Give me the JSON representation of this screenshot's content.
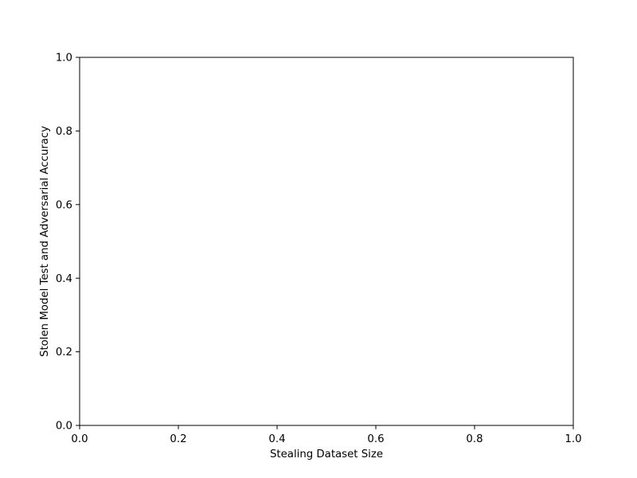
{
  "chart_data": {
    "type": "line",
    "title": "",
    "xlabel": "Stealing Dataset Size",
    "ylabel": "Stolen Model Test and Adversarial Accuracy",
    "xlim": [
      0,
      1
    ],
    "ylim": [
      0,
      1
    ],
    "x_ticks": [
      0.0,
      0.2,
      0.4,
      0.6,
      0.8,
      1.0
    ],
    "x_tick_labels": [
      "0.0",
      "0.2",
      "0.4",
      "0.6",
      "0.8",
      "1.0"
    ],
    "y_ticks": [
      0.0,
      0.2,
      0.4,
      0.6,
      0.8,
      1.0
    ],
    "y_tick_labels": [
      "0.0",
      "0.2",
      "0.4",
      "0.6",
      "0.8",
      "1.0"
    ],
    "grid": false,
    "series": []
  },
  "colors": {
    "axis": "#000000",
    "background": "#ffffff"
  }
}
